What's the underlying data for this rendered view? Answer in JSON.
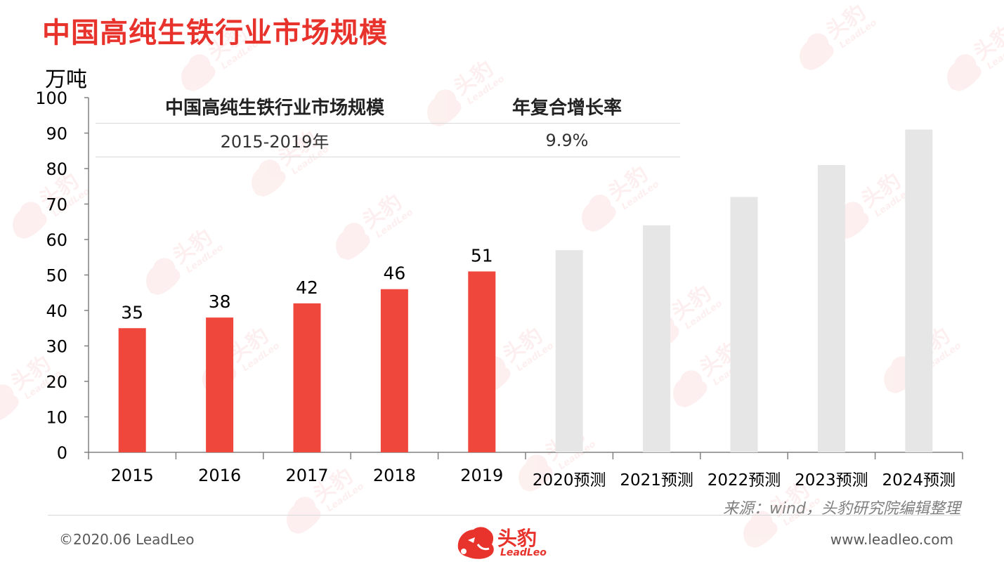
{
  "title": "中国高纯生铁行业市场规模",
  "unit": "万吨",
  "cagr_table": {
    "headers": [
      "中国高纯生铁行业市场规模",
      "年复合增长率"
    ],
    "rows": [
      {
        "period": "2015-2019年",
        "rate": "9.9%"
      }
    ]
  },
  "source": "来源：wind，头豹研究院编辑整理",
  "footer": {
    "copyright": "©2020.06 LeadLeo",
    "website": "www.leadleo.com",
    "logo_cn": "头豹",
    "logo_en": "LeadLeo"
  },
  "watermark": {
    "cn": "头豹",
    "en": "LeadLeo"
  },
  "colors": {
    "accent": "#e8322c",
    "actual_bar": "#f0473d",
    "forecast_bar": "#e6e6e6",
    "axis": "#808080"
  },
  "chart_data": {
    "type": "bar",
    "categories": [
      "2015",
      "2016",
      "2017",
      "2018",
      "2019",
      "2020预测",
      "2021预测",
      "2022预测",
      "2023预测",
      "2024预测"
    ],
    "values": [
      35,
      38,
      42,
      46,
      51,
      57,
      64,
      72,
      81,
      91
    ],
    "forecast": [
      false,
      false,
      false,
      false,
      false,
      true,
      true,
      true,
      true,
      true
    ],
    "data_labels": [
      "35",
      "38",
      "42",
      "46",
      "51",
      "",
      "",
      "",
      "",
      ""
    ],
    "ylabel": "万吨",
    "ylim": [
      0,
      100
    ],
    "yticks": [
      0,
      10,
      20,
      30,
      40,
      50,
      60,
      70,
      80,
      90,
      100
    ],
    "grid": false
  }
}
